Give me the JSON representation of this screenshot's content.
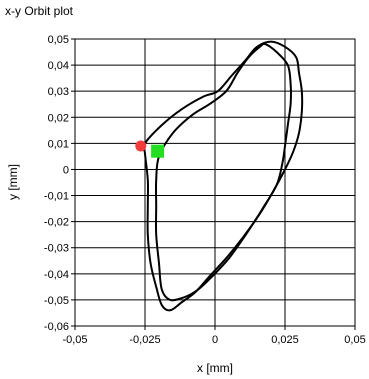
{
  "title": "x-y Orbit plot",
  "chart_data": {
    "type": "scatter",
    "title": "x-y Orbit plot",
    "xlabel": "x [mm]",
    "ylabel": "y [mm]",
    "xlim": [
      -0.05,
      0.05
    ],
    "ylim": [
      -0.06,
      0.05
    ],
    "x_ticks": [
      "-0,05",
      "-0,025",
      "0",
      "0,025",
      "0,05"
    ],
    "y_ticks": [
      "0,05",
      "0,04",
      "0,03",
      "0,02",
      "0,01",
      "0",
      "-0,01",
      "-0,02",
      "-0,03",
      "-0,04",
      "-0,05",
      "-0,06"
    ],
    "grid": true,
    "series": [
      {
        "color": "#000000",
        "points": [
          [
            0.02,
            0.049
          ],
          [
            0.025,
            0.047
          ],
          [
            0.029,
            0.043
          ],
          [
            0.03,
            0.037
          ],
          [
            0.031,
            0.03
          ],
          [
            0.031,
            0.022
          ],
          [
            0.03,
            0.014
          ],
          [
            0.028,
            0.007
          ],
          [
            0.025,
            0.0
          ],
          [
            0.021,
            -0.008
          ],
          [
            0.016,
            -0.017
          ],
          [
            0.01,
            -0.026
          ],
          [
            0.004,
            -0.034
          ],
          [
            -0.002,
            -0.041
          ],
          [
            -0.007,
            -0.047
          ],
          [
            -0.012,
            -0.051
          ],
          [
            -0.016,
            -0.054
          ],
          [
            -0.019,
            -0.052
          ],
          [
            -0.021,
            -0.045
          ],
          [
            -0.023,
            -0.036
          ],
          [
            -0.024,
            -0.025
          ],
          [
            -0.024,
            -0.014
          ],
          [
            -0.024,
            -0.004
          ],
          [
            -0.025,
            0.006
          ],
          [
            -0.025,
            0.01
          ],
          [
            -0.019,
            0.017
          ],
          [
            -0.012,
            0.023
          ],
          [
            -0.004,
            0.028
          ],
          [
            0.001,
            0.03
          ],
          [
            0.006,
            0.036
          ],
          [
            0.011,
            0.042
          ],
          [
            0.015,
            0.047
          ],
          [
            0.02,
            0.049
          ]
        ]
      },
      {
        "color": "#000000",
        "points": [
          [
            0.018,
            0.048
          ],
          [
            0.022,
            0.045
          ],
          [
            0.026,
            0.04
          ],
          [
            0.027,
            0.033
          ],
          [
            0.027,
            0.025
          ],
          [
            0.026,
            0.017
          ],
          [
            0.025,
            0.009
          ],
          [
            0.024,
            0.002
          ],
          [
            0.022,
            -0.006
          ],
          [
            0.017,
            -0.015
          ],
          [
            0.011,
            -0.025
          ],
          [
            0.005,
            -0.034
          ],
          [
            -0.001,
            -0.041
          ],
          [
            -0.006,
            -0.046
          ],
          [
            -0.011,
            -0.049
          ],
          [
            -0.016,
            -0.05
          ],
          [
            -0.019,
            -0.046
          ],
          [
            -0.02,
            -0.036
          ],
          [
            -0.021,
            -0.025
          ],
          [
            -0.021,
            -0.014
          ],
          [
            -0.021,
            -0.004
          ],
          [
            -0.02,
            0.005
          ],
          [
            -0.015,
            0.014
          ],
          [
            -0.008,
            0.021
          ],
          [
            -0.002,
            0.025
          ],
          [
            0.004,
            0.03
          ],
          [
            0.008,
            0.037
          ],
          [
            0.012,
            0.043
          ],
          [
            0.016,
            0.047
          ],
          [
            0.018,
            0.048
          ]
        ]
      }
    ],
    "markers": [
      {
        "x": -0.0265,
        "y": 0.009,
        "shape": "circle",
        "color": "#f23b3b"
      },
      {
        "x": -0.0205,
        "y": 0.007,
        "shape": "square",
        "color": "#22dd22"
      }
    ]
  }
}
